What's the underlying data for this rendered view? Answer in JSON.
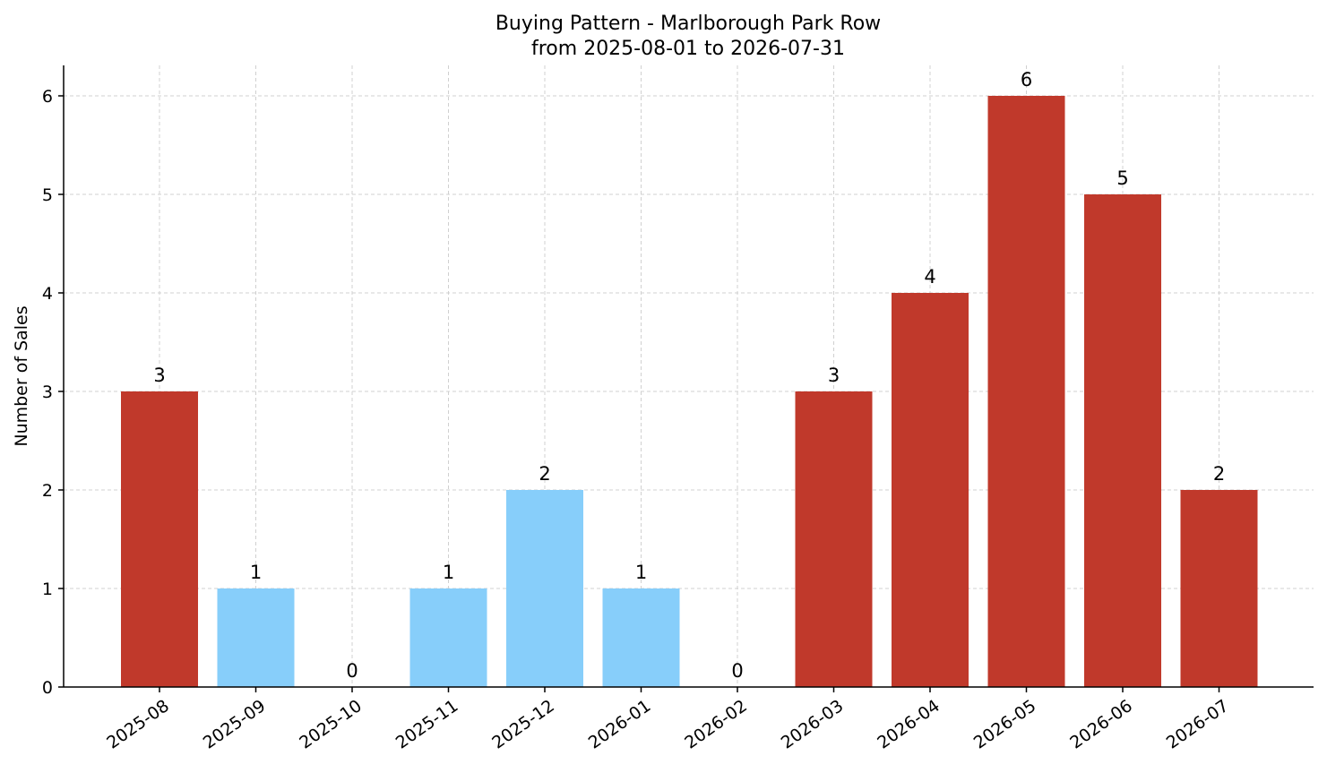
{
  "chart_data": {
    "type": "bar",
    "title": "Buying Pattern - Marlborough Park Row",
    "subtitle": "from 2025-08-01 to 2026-07-31",
    "xlabel": "",
    "ylabel": "Number of Sales",
    "ylim": [
      0,
      6.3
    ],
    "yticks": [
      0,
      1,
      2,
      3,
      4,
      5,
      6
    ],
    "grid": true,
    "categories": [
      "2025-08",
      "2025-09",
      "2025-10",
      "2025-11",
      "2025-12",
      "2026-01",
      "2026-02",
      "2026-03",
      "2026-04",
      "2026-05",
      "2026-06",
      "2026-07"
    ],
    "values": [
      3,
      1,
      0,
      1,
      2,
      1,
      0,
      3,
      4,
      6,
      5,
      2
    ],
    "bar_colors": [
      "#c0392b",
      "#87cefa",
      "#87cefa",
      "#87cefa",
      "#87cefa",
      "#87cefa",
      "#87cefa",
      "#c0392b",
      "#c0392b",
      "#c0392b",
      "#c0392b",
      "#c0392b"
    ],
    "colors": {
      "high": "#c0392b",
      "low": "#87cefa"
    }
  }
}
